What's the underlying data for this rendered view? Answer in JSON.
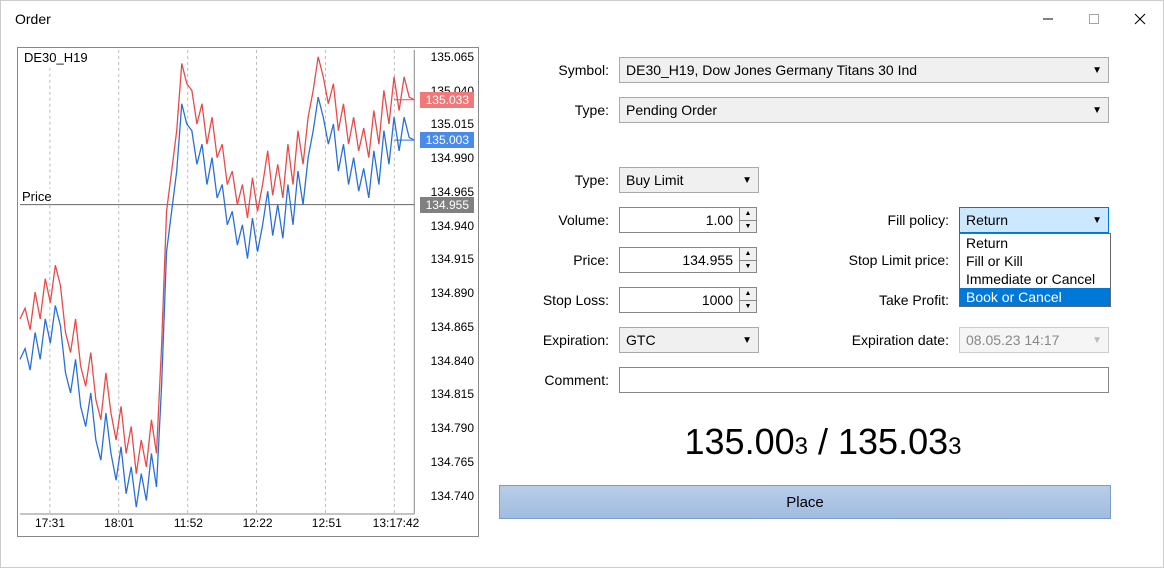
{
  "window": {
    "title": "Order"
  },
  "chart": {
    "symbol_label": "DE30_H19",
    "price_label": "Price",
    "y_axis": {
      "min": 134.725,
      "max": 135.07,
      "ticks": [
        "135.065",
        "135.040",
        "135.015",
        "134.990",
        "134.965",
        "134.940",
        "134.915",
        "134.890",
        "134.865",
        "134.840",
        "134.815",
        "134.790",
        "134.765",
        "134.740"
      ]
    },
    "x_axis": [
      "17:31",
      "18:01",
      "11:52",
      "12:22",
      "12:51",
      "13:17:42"
    ],
    "ask_line_color": "#e84a4a",
    "bid_line_color": "#2a6fd6",
    "price_line_color": "#808080",
    "grid_color": "#bbbbbb",
    "tags": {
      "ask": {
        "value": "135.033",
        "bg": "#f07878"
      },
      "bid": {
        "value": "135.003",
        "bg": "#4a8ae8"
      },
      "price": {
        "value": "134.955",
        "bg": "#808080"
      }
    },
    "ask_series": [
      134.87,
      134.878,
      134.862,
      134.89,
      134.87,
      134.9,
      134.882,
      134.91,
      134.895,
      134.86,
      134.845,
      134.87,
      134.835,
      134.82,
      134.845,
      134.81,
      134.795,
      134.83,
      134.8,
      134.78,
      134.805,
      134.77,
      134.79,
      134.755,
      134.78,
      134.76,
      134.795,
      134.77,
      134.85,
      134.95,
      134.98,
      135.01,
      135.06,
      135.045,
      135.04,
      135.015,
      135.03,
      135.0,
      135.02,
      134.99,
      135.0,
      134.97,
      134.98,
      134.955,
      134.97,
      134.945,
      134.975,
      134.95,
      134.97,
      134.995,
      134.962,
      134.985,
      134.96,
      135.0,
      134.97,
      135.01,
      134.985,
      135.02,
      135.04,
      135.065,
      135.05,
      135.03,
      135.045,
      135.01,
      135.03,
      135.0,
      135.02,
      134.995,
      135.012,
      134.99,
      135.025,
      135.0,
      135.04,
      135.015,
      135.05,
      135.025,
      135.05,
      135.035,
      135.033
    ],
    "bid_series": [
      134.84,
      134.848,
      134.832,
      134.86,
      134.84,
      134.87,
      134.852,
      134.88,
      134.865,
      134.83,
      134.815,
      134.84,
      134.805,
      134.79,
      134.815,
      134.78,
      134.765,
      134.8,
      134.77,
      134.75,
      134.775,
      134.74,
      134.76,
      134.73,
      134.755,
      134.735,
      134.77,
      134.745,
      134.82,
      134.92,
      134.95,
      134.98,
      135.03,
      135.015,
      135.01,
      134.985,
      135.0,
      134.97,
      134.99,
      134.96,
      134.97,
      134.94,
      134.95,
      134.925,
      134.94,
      134.915,
      134.945,
      134.92,
      134.94,
      134.965,
      134.932,
      134.955,
      134.93,
      134.97,
      134.94,
      134.98,
      134.955,
      134.99,
      135.01,
      135.035,
      135.02,
      135.0,
      135.015,
      134.98,
      135.0,
      134.97,
      134.99,
      134.965,
      134.982,
      134.96,
      134.995,
      134.97,
      135.01,
      134.985,
      135.02,
      134.995,
      135.02,
      135.005,
      135.003
    ]
  },
  "form": {
    "labels": {
      "symbol": "Symbol:",
      "type": "Type:",
      "order_type": "Type:",
      "volume": "Volume:",
      "price": "Price:",
      "stop_loss": "Stop Loss:",
      "expiration": "Expiration:",
      "comment": "Comment:",
      "fill_policy": "Fill policy:",
      "stop_limit_price": "Stop Limit price:",
      "take_profit": "Take Profit:",
      "expiration_date": "Expiration date:"
    },
    "symbol": "DE30_H19, Dow Jones Germany Titans 30 Ind",
    "type": "Pending Order",
    "order_type": "Buy Limit",
    "volume": "1.00",
    "price": "134.955",
    "stop_loss": "1000",
    "expiration": "GTC",
    "fill_policy": "Return",
    "fill_policy_options": [
      "Return",
      "Fill or Kill",
      "Immediate or Cancel",
      "Book or Cancel"
    ],
    "fill_policy_highlight": "Book or Cancel",
    "expiration_date": "08.05.23 14:17"
  },
  "prices": {
    "bid_main": "135.00",
    "bid_sub": "3",
    "ask_main": "135.03",
    "ask_sub": "3"
  },
  "buttons": {
    "place": "Place"
  }
}
